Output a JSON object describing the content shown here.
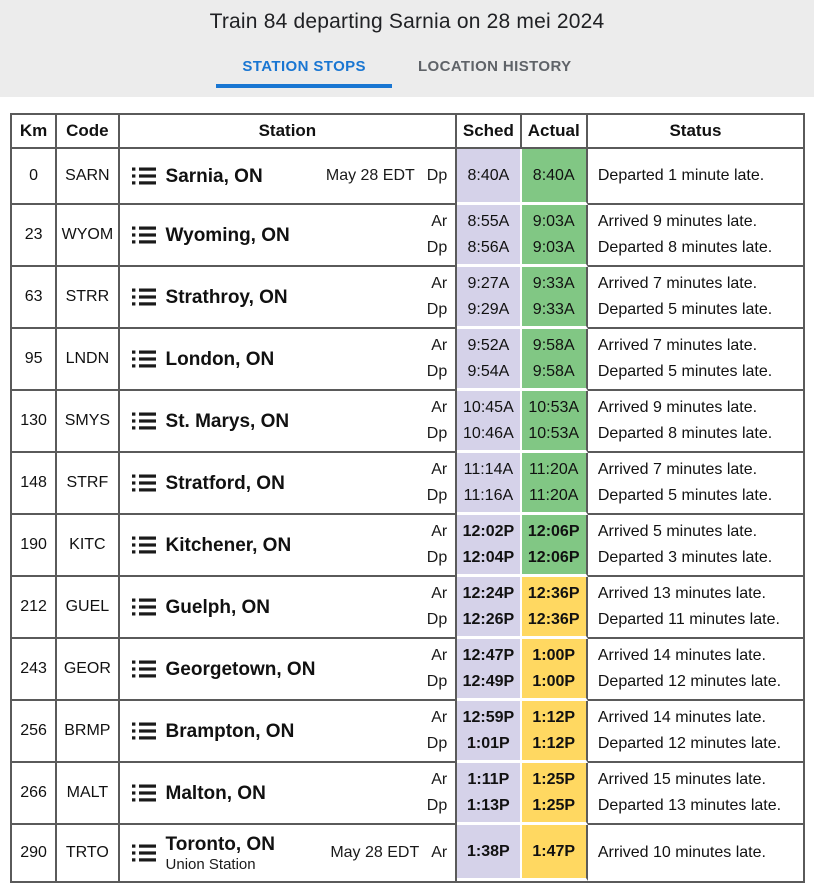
{
  "header": {
    "title": "Train 84 departing Sarnia on 28 mei 2024",
    "tabs": [
      {
        "label": "STATION STOPS",
        "active": true
      },
      {
        "label": "LOCATION HISTORY",
        "active": false
      }
    ]
  },
  "colors": {
    "accent_blue": "#1976d2",
    "tab_inactive_gray": "#5f6368",
    "header_band_bg": "#ececec",
    "sched_bg": "#d5d2e9",
    "actual_ontime_bg": "#81c784",
    "actual_late_bg": "#ffd861",
    "table_border": "#5a5a5a"
  },
  "icons": {
    "station_menu": "list-icon"
  },
  "table": {
    "columns": [
      "Km",
      "Code",
      "Station",
      "Sched",
      "Actual",
      "Status"
    ],
    "rows": [
      {
        "km": "0",
        "code": "SARN",
        "name": "Sarnia, ON",
        "sub": null,
        "note": "May 28 EDT",
        "marks": [
          "Dp"
        ],
        "sched": [
          "8:40A"
        ],
        "actual": [
          "8:40A"
        ],
        "late": false,
        "status": [
          "Departed 1 minute late."
        ]
      },
      {
        "km": "23",
        "code": "WYOM",
        "name": "Wyoming, ON",
        "sub": null,
        "note": null,
        "marks": [
          "Ar",
          "Dp"
        ],
        "sched": [
          "8:55A",
          "8:56A"
        ],
        "actual": [
          "9:03A",
          "9:03A"
        ],
        "late": false,
        "status": [
          "Arrived 9 minutes late.",
          "Departed 8 minutes late."
        ]
      },
      {
        "km": "63",
        "code": "STRR",
        "name": "Strathroy, ON",
        "sub": null,
        "note": null,
        "marks": [
          "Ar",
          "Dp"
        ],
        "sched": [
          "9:27A",
          "9:29A"
        ],
        "actual": [
          "9:33A",
          "9:33A"
        ],
        "late": false,
        "status": [
          "Arrived 7 minutes late.",
          "Departed 5 minutes late."
        ]
      },
      {
        "km": "95",
        "code": "LNDN",
        "name": "London, ON",
        "sub": null,
        "note": null,
        "marks": [
          "Ar",
          "Dp"
        ],
        "sched": [
          "9:52A",
          "9:54A"
        ],
        "actual": [
          "9:58A",
          "9:58A"
        ],
        "late": false,
        "status": [
          "Arrived 7 minutes late.",
          "Departed 5 minutes late."
        ]
      },
      {
        "km": "130",
        "code": "SMYS",
        "name": "St. Marys, ON",
        "sub": null,
        "note": null,
        "marks": [
          "Ar",
          "Dp"
        ],
        "sched": [
          "10:45A",
          "10:46A"
        ],
        "actual": [
          "10:53A",
          "10:53A"
        ],
        "late": false,
        "status": [
          "Arrived 9 minutes late.",
          "Departed 8 minutes late."
        ]
      },
      {
        "km": "148",
        "code": "STRF",
        "name": "Stratford, ON",
        "sub": null,
        "note": null,
        "marks": [
          "Ar",
          "Dp"
        ],
        "sched": [
          "11:14A",
          "11:16A"
        ],
        "actual": [
          "11:20A",
          "11:20A"
        ],
        "late": false,
        "status": [
          "Arrived 7 minutes late.",
          "Departed 5 minutes late."
        ]
      },
      {
        "km": "190",
        "code": "KITC",
        "name": "Kitchener, ON",
        "sub": null,
        "note": null,
        "marks": [
          "Ar",
          "Dp"
        ],
        "sched": [
          "12:02P",
          "12:04P"
        ],
        "actual": [
          "12:06P",
          "12:06P"
        ],
        "late": false,
        "status": [
          "Arrived 5 minutes late.",
          "Departed 3 minutes late."
        ]
      },
      {
        "km": "212",
        "code": "GUEL",
        "name": "Guelph, ON",
        "sub": null,
        "note": null,
        "marks": [
          "Ar",
          "Dp"
        ],
        "sched": [
          "12:24P",
          "12:26P"
        ],
        "actual": [
          "12:36P",
          "12:36P"
        ],
        "late": true,
        "status": [
          "Arrived 13 minutes late.",
          "Departed 11 minutes late."
        ]
      },
      {
        "km": "243",
        "code": "GEOR",
        "name": "Georgetown, ON",
        "sub": null,
        "note": null,
        "marks": [
          "Ar",
          "Dp"
        ],
        "sched": [
          "12:47P",
          "12:49P"
        ],
        "actual": [
          "1:00P",
          "1:00P"
        ],
        "late": true,
        "status": [
          "Arrived 14 minutes late.",
          "Departed 12 minutes late."
        ]
      },
      {
        "km": "256",
        "code": "BRMP",
        "name": "Brampton, ON",
        "sub": null,
        "note": null,
        "marks": [
          "Ar",
          "Dp"
        ],
        "sched": [
          "12:59P",
          "1:01P"
        ],
        "actual": [
          "1:12P",
          "1:12P"
        ],
        "late": true,
        "status": [
          "Arrived 14 minutes late.",
          "Departed 12 minutes late."
        ]
      },
      {
        "km": "266",
        "code": "MALT",
        "name": "Malton, ON",
        "sub": null,
        "note": null,
        "marks": [
          "Ar",
          "Dp"
        ],
        "sched": [
          "1:11P",
          "1:13P"
        ],
        "actual": [
          "1:25P",
          "1:25P"
        ],
        "late": true,
        "status": [
          "Arrived 15 minutes late.",
          "Departed 13 minutes late."
        ]
      },
      {
        "km": "290",
        "code": "TRTO",
        "name": "Toronto, ON",
        "sub": "Union Station",
        "note": "May 28 EDT",
        "marks": [
          "Ar"
        ],
        "sched": [
          "1:38P"
        ],
        "actual": [
          "1:47P"
        ],
        "late": true,
        "status": [
          "Arrived 10 minutes late."
        ]
      }
    ]
  }
}
